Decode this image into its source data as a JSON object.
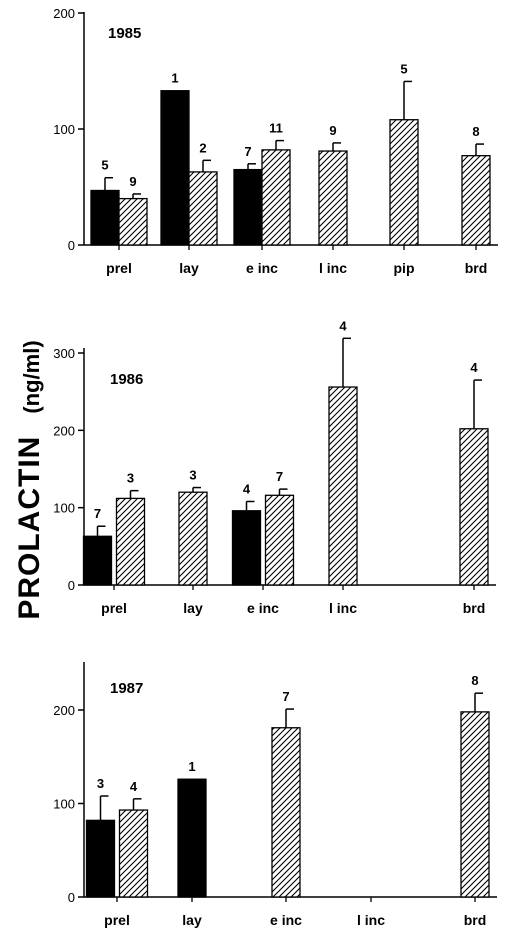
{
  "figure": {
    "ylabel_main": "PROLACTIN",
    "ylabel_unit": "(ng/ml)"
  },
  "colors": {
    "solid": "#000000",
    "hatch": "#000000",
    "axis": "#000000"
  },
  "chart_data": [
    {
      "type": "bar",
      "title": "1985",
      "categories": [
        "prel",
        "lay",
        "e inc",
        "l inc",
        "pip",
        "brd"
      ],
      "ylim": [
        0,
        200
      ],
      "yticks": [
        0,
        100,
        200
      ],
      "legend": "none",
      "grid": false,
      "series": [
        {
          "style": "solid",
          "values": [
            47,
            133,
            65,
            null,
            null,
            null
          ],
          "errors": [
            11,
            null,
            5,
            null,
            null,
            null
          ],
          "n": [
            "5",
            "1",
            "7",
            null,
            null,
            null
          ]
        },
        {
          "style": "hatched",
          "values": [
            40,
            63,
            82,
            81,
            108,
            77
          ],
          "errors": [
            4,
            10,
            8,
            7,
            33,
            10
          ],
          "n": [
            "9",
            "2",
            "11",
            "9",
            "5",
            "8"
          ]
        }
      ]
    },
    {
      "type": "bar",
      "title": "1986",
      "categories": [
        "prel",
        "lay",
        "e inc",
        "l inc",
        "brd"
      ],
      "ylim": [
        0,
        350
      ],
      "yticks": [
        0,
        100,
        200,
        300
      ],
      "legend": "none",
      "grid": false,
      "series": [
        {
          "style": "solid",
          "values": [
            63,
            null,
            96,
            null,
            null
          ],
          "errors": [
            13,
            null,
            12,
            null,
            null
          ],
          "n": [
            "7",
            null,
            "4",
            null,
            null
          ]
        },
        {
          "style": "hatched",
          "values": [
            112,
            120,
            116,
            256,
            202
          ],
          "errors": [
            10,
            6,
            8,
            63,
            63
          ],
          "n": [
            "3",
            "3",
            "7",
            "4",
            "4"
          ]
        }
      ]
    },
    {
      "type": "bar",
      "title": "1987",
      "categories": [
        "prel",
        "lay",
        "e inc",
        "l inc",
        "brd"
      ],
      "ylim": [
        0,
        250
      ],
      "yticks": [
        0,
        100,
        200
      ],
      "legend": "none",
      "grid": false,
      "series": [
        {
          "style": "solid",
          "values": [
            82,
            126,
            null,
            null,
            null
          ],
          "errors": [
            26,
            null,
            null,
            null,
            null
          ],
          "n": [
            "3",
            "1",
            null,
            null,
            null
          ]
        },
        {
          "style": "hatched",
          "values": [
            93,
            null,
            181,
            null,
            198
          ],
          "errors": [
            12,
            null,
            20,
            null,
            20
          ],
          "n": [
            "4",
            null,
            "7",
            null,
            "8"
          ]
        }
      ]
    }
  ]
}
